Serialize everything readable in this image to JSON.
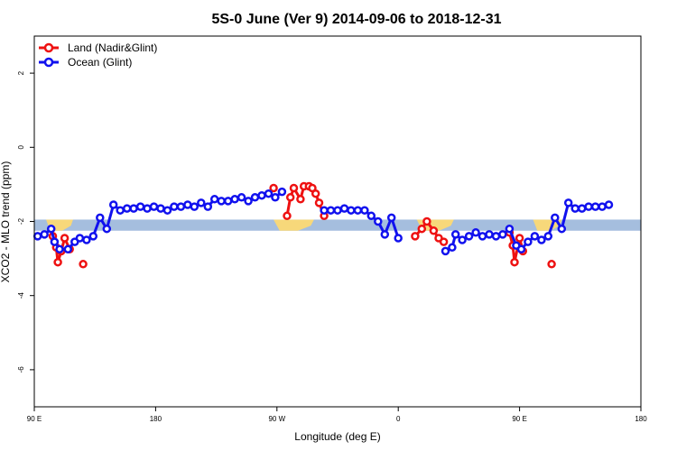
{
  "chart_data": {
    "type": "line",
    "title": "5S-0 June (Ver 9)   2014-09-06 to 2018-12-31",
    "xlabel": "Longitude (deg E)",
    "ylabel": "XCO2 - MLO trend (ppm)",
    "xlim": [
      90,
      450
    ],
    "ylim": [
      -7,
      3
    ],
    "x_ticks": [
      {
        "value": 90,
        "label": "90 E"
      },
      {
        "value": 162,
        "label": "180"
      },
      {
        "value": 234,
        "label": "90 W"
      },
      {
        "value": 306,
        "label": "0"
      },
      {
        "value": 378,
        "label": "90 E"
      },
      {
        "value": 450,
        "label": "180"
      }
    ],
    "y_ticks": [
      {
        "value": 2,
        "label": "2"
      },
      {
        "value": 0,
        "label": "0"
      },
      {
        "value": -2,
        "label": "-2"
      },
      {
        "value": -4,
        "label": "-4"
      },
      {
        "value": -6,
        "label": "-6"
      }
    ],
    "band": {
      "ymin": -2.25,
      "ymax": -1.95,
      "color": "#a5bede"
    },
    "land_patches": [
      [
        97,
        113
      ],
      [
        232,
        256
      ],
      [
        317,
        339
      ],
      [
        386,
        403
      ]
    ],
    "land_color": "#f7d87a",
    "legend": [
      {
        "label": "Land (Nadir&Glint)",
        "color": "#ee1111"
      },
      {
        "label": "Ocean (Glint)",
        "color": "#1111ee"
      }
    ],
    "series": [
      {
        "name": "Land (Nadir&Glint)",
        "color": "#ee1111",
        "segments": [
          [
            [
              101,
              -2.4
            ],
            [
              103,
              -2.7
            ],
            [
              104,
              -3.1
            ],
            [
              106,
              -2.8
            ],
            [
              108,
              -2.45
            ],
            [
              111,
              -2.75
            ]
          ],
          [
            [
              119,
              -3.15
            ]
          ],
          [
            [
              232,
              -1.1
            ]
          ],
          [
            [
              240,
              -1.85
            ],
            [
              242,
              -1.35
            ],
            [
              244,
              -1.1
            ],
            [
              248,
              -1.4
            ],
            [
              250,
              -1.05
            ],
            [
              253,
              -1.05
            ],
            [
              255,
              -1.1
            ],
            [
              257,
              -1.25
            ],
            [
              259,
              -1.5
            ],
            [
              262,
              -1.85
            ]
          ],
          [
            [
              316,
              -2.4
            ],
            [
              320,
              -2.2
            ],
            [
              323,
              -2.0
            ],
            [
              327,
              -2.25
            ],
            [
              330,
              -2.45
            ],
            [
              333,
              -2.55
            ]
          ],
          [
            [
              372,
              -2.3
            ],
            [
              374,
              -2.65
            ],
            [
              375,
              -3.1
            ],
            [
              378,
              -2.45
            ],
            [
              380,
              -2.8
            ]
          ],
          [
            [
              397,
              -3.15
            ]
          ]
        ]
      },
      {
        "name": "Ocean (Glint)",
        "color": "#1111ee",
        "segments": [
          [
            [
              92,
              -2.4
            ],
            [
              96,
              -2.35
            ],
            [
              100,
              -2.2
            ],
            [
              102,
              -2.55
            ],
            [
              105,
              -2.75
            ],
            [
              110,
              -2.75
            ],
            [
              114,
              -2.55
            ],
            [
              117,
              -2.45
            ],
            [
              121,
              -2.5
            ],
            [
              125,
              -2.4
            ],
            [
              129,
              -1.9
            ],
            [
              133,
              -2.2
            ],
            [
              137,
              -1.55
            ],
            [
              141,
              -1.7
            ],
            [
              145,
              -1.65
            ],
            [
              149,
              -1.65
            ],
            [
              153,
              -1.6
            ],
            [
              157,
              -1.65
            ],
            [
              161,
              -1.6
            ],
            [
              165,
              -1.65
            ],
            [
              169,
              -1.7
            ],
            [
              173,
              -1.6
            ],
            [
              177,
              -1.6
            ],
            [
              181,
              -1.55
            ],
            [
              185,
              -1.6
            ],
            [
              189,
              -1.5
            ],
            [
              193,
              -1.6
            ],
            [
              197,
              -1.4
            ],
            [
              201,
              -1.45
            ],
            [
              205,
              -1.45
            ],
            [
              209,
              -1.4
            ],
            [
              213,
              -1.35
            ],
            [
              217,
              -1.45
            ],
            [
              221,
              -1.35
            ],
            [
              225,
              -1.3
            ],
            [
              229,
              -1.25
            ],
            [
              233,
              -1.35
            ],
            [
              237,
              -1.2
            ]
          ],
          [
            [
              262,
              -1.7
            ],
            [
              266,
              -1.7
            ],
            [
              270,
              -1.7
            ],
            [
              274,
              -1.65
            ],
            [
              278,
              -1.7
            ],
            [
              282,
              -1.7
            ],
            [
              286,
              -1.7
            ],
            [
              290,
              -1.85
            ],
            [
              294,
              -2.0
            ],
            [
              298,
              -2.35
            ],
            [
              302,
              -1.9
            ],
            [
              306,
              -2.45
            ]
          ],
          [
            [
              334,
              -2.8
            ],
            [
              338,
              -2.7
            ],
            [
              340,
              -2.35
            ],
            [
              344,
              -2.5
            ],
            [
              348,
              -2.4
            ],
            [
              352,
              -2.3
            ],
            [
              356,
              -2.4
            ],
            [
              360,
              -2.35
            ],
            [
              364,
              -2.4
            ],
            [
              368,
              -2.35
            ],
            [
              372,
              -2.2
            ],
            [
              376,
              -2.65
            ],
            [
              379,
              -2.75
            ],
            [
              383,
              -2.55
            ],
            [
              387,
              -2.4
            ],
            [
              391,
              -2.5
            ],
            [
              395,
              -2.4
            ],
            [
              399,
              -1.9
            ],
            [
              403,
              -2.2
            ],
            [
              407,
              -1.5
            ],
            [
              411,
              -1.65
            ],
            [
              415,
              -1.65
            ],
            [
              419,
              -1.6
            ],
            [
              423,
              -1.6
            ],
            [
              427,
              -1.6
            ],
            [
              431,
              -1.55
            ]
          ]
        ]
      }
    ]
  }
}
